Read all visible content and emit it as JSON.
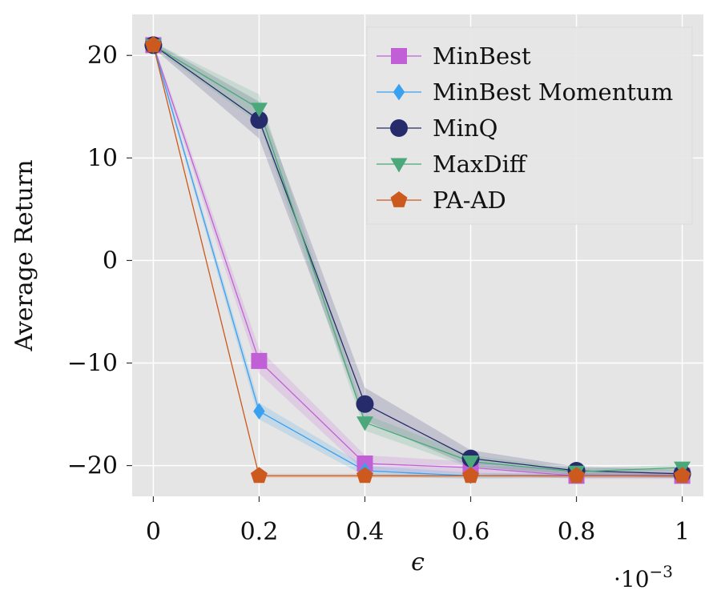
{
  "chart_data": {
    "type": "line",
    "xlabel": "ϵ",
    "ylabel": "Average Return",
    "x_scale_label": "·10",
    "x_scale_exponent": "−3",
    "x": [
      0,
      0.2,
      0.4,
      0.6,
      0.8,
      1
    ],
    "x_tick_labels": [
      "0",
      "0.2",
      "0.4",
      "0.6",
      "0.8",
      "1"
    ],
    "y_ticks": [
      20,
      10,
      0,
      -10,
      -20
    ],
    "y_tick_labels": [
      "20",
      "10",
      "0",
      "−10",
      "−20"
    ],
    "xlim": [
      -0.04,
      1.04
    ],
    "ylim": [
      -23,
      24
    ],
    "grid": true,
    "legend_position": "top-right",
    "series": [
      {
        "name": "MinBest",
        "values": [
          21,
          -9.8,
          -19.8,
          -20.2,
          -21,
          -21
        ],
        "band": [
          0.3,
          1.2,
          0.8,
          0.6,
          0.3,
          0.3
        ],
        "color": "#c160d6",
        "marker": "square"
      },
      {
        "name": "MinBest Momentum",
        "values": [
          21,
          -14.7,
          -20.5,
          -21,
          -21,
          -21
        ],
        "band": [
          0.3,
          0.8,
          0.5,
          0.3,
          0.2,
          0.2
        ],
        "color": "#3aa0f0",
        "marker": "diamond"
      },
      {
        "name": "MinQ",
        "values": [
          21,
          13.7,
          -14,
          -19.3,
          -20.5,
          -20.8
        ],
        "band": [
          0.3,
          1.8,
          1.6,
          0.8,
          0.4,
          0.4
        ],
        "color": "#262c6b",
        "marker": "circle"
      },
      {
        "name": "MaxDiff",
        "values": [
          21,
          14.8,
          -15.8,
          -19.6,
          -20.6,
          -20.2
        ],
        "band": [
          0.3,
          1.4,
          0.8,
          0.6,
          0.3,
          0.3
        ],
        "color": "#4aa87a",
        "marker": "triangle-down"
      },
      {
        "name": "PA-AD",
        "values": [
          21,
          -21,
          -21,
          -21,
          -21,
          -21
        ],
        "band": [
          0.2,
          0.2,
          0.2,
          0.2,
          0.2,
          0.2
        ],
        "color": "#cc5a1e",
        "marker": "pentagon"
      }
    ]
  }
}
